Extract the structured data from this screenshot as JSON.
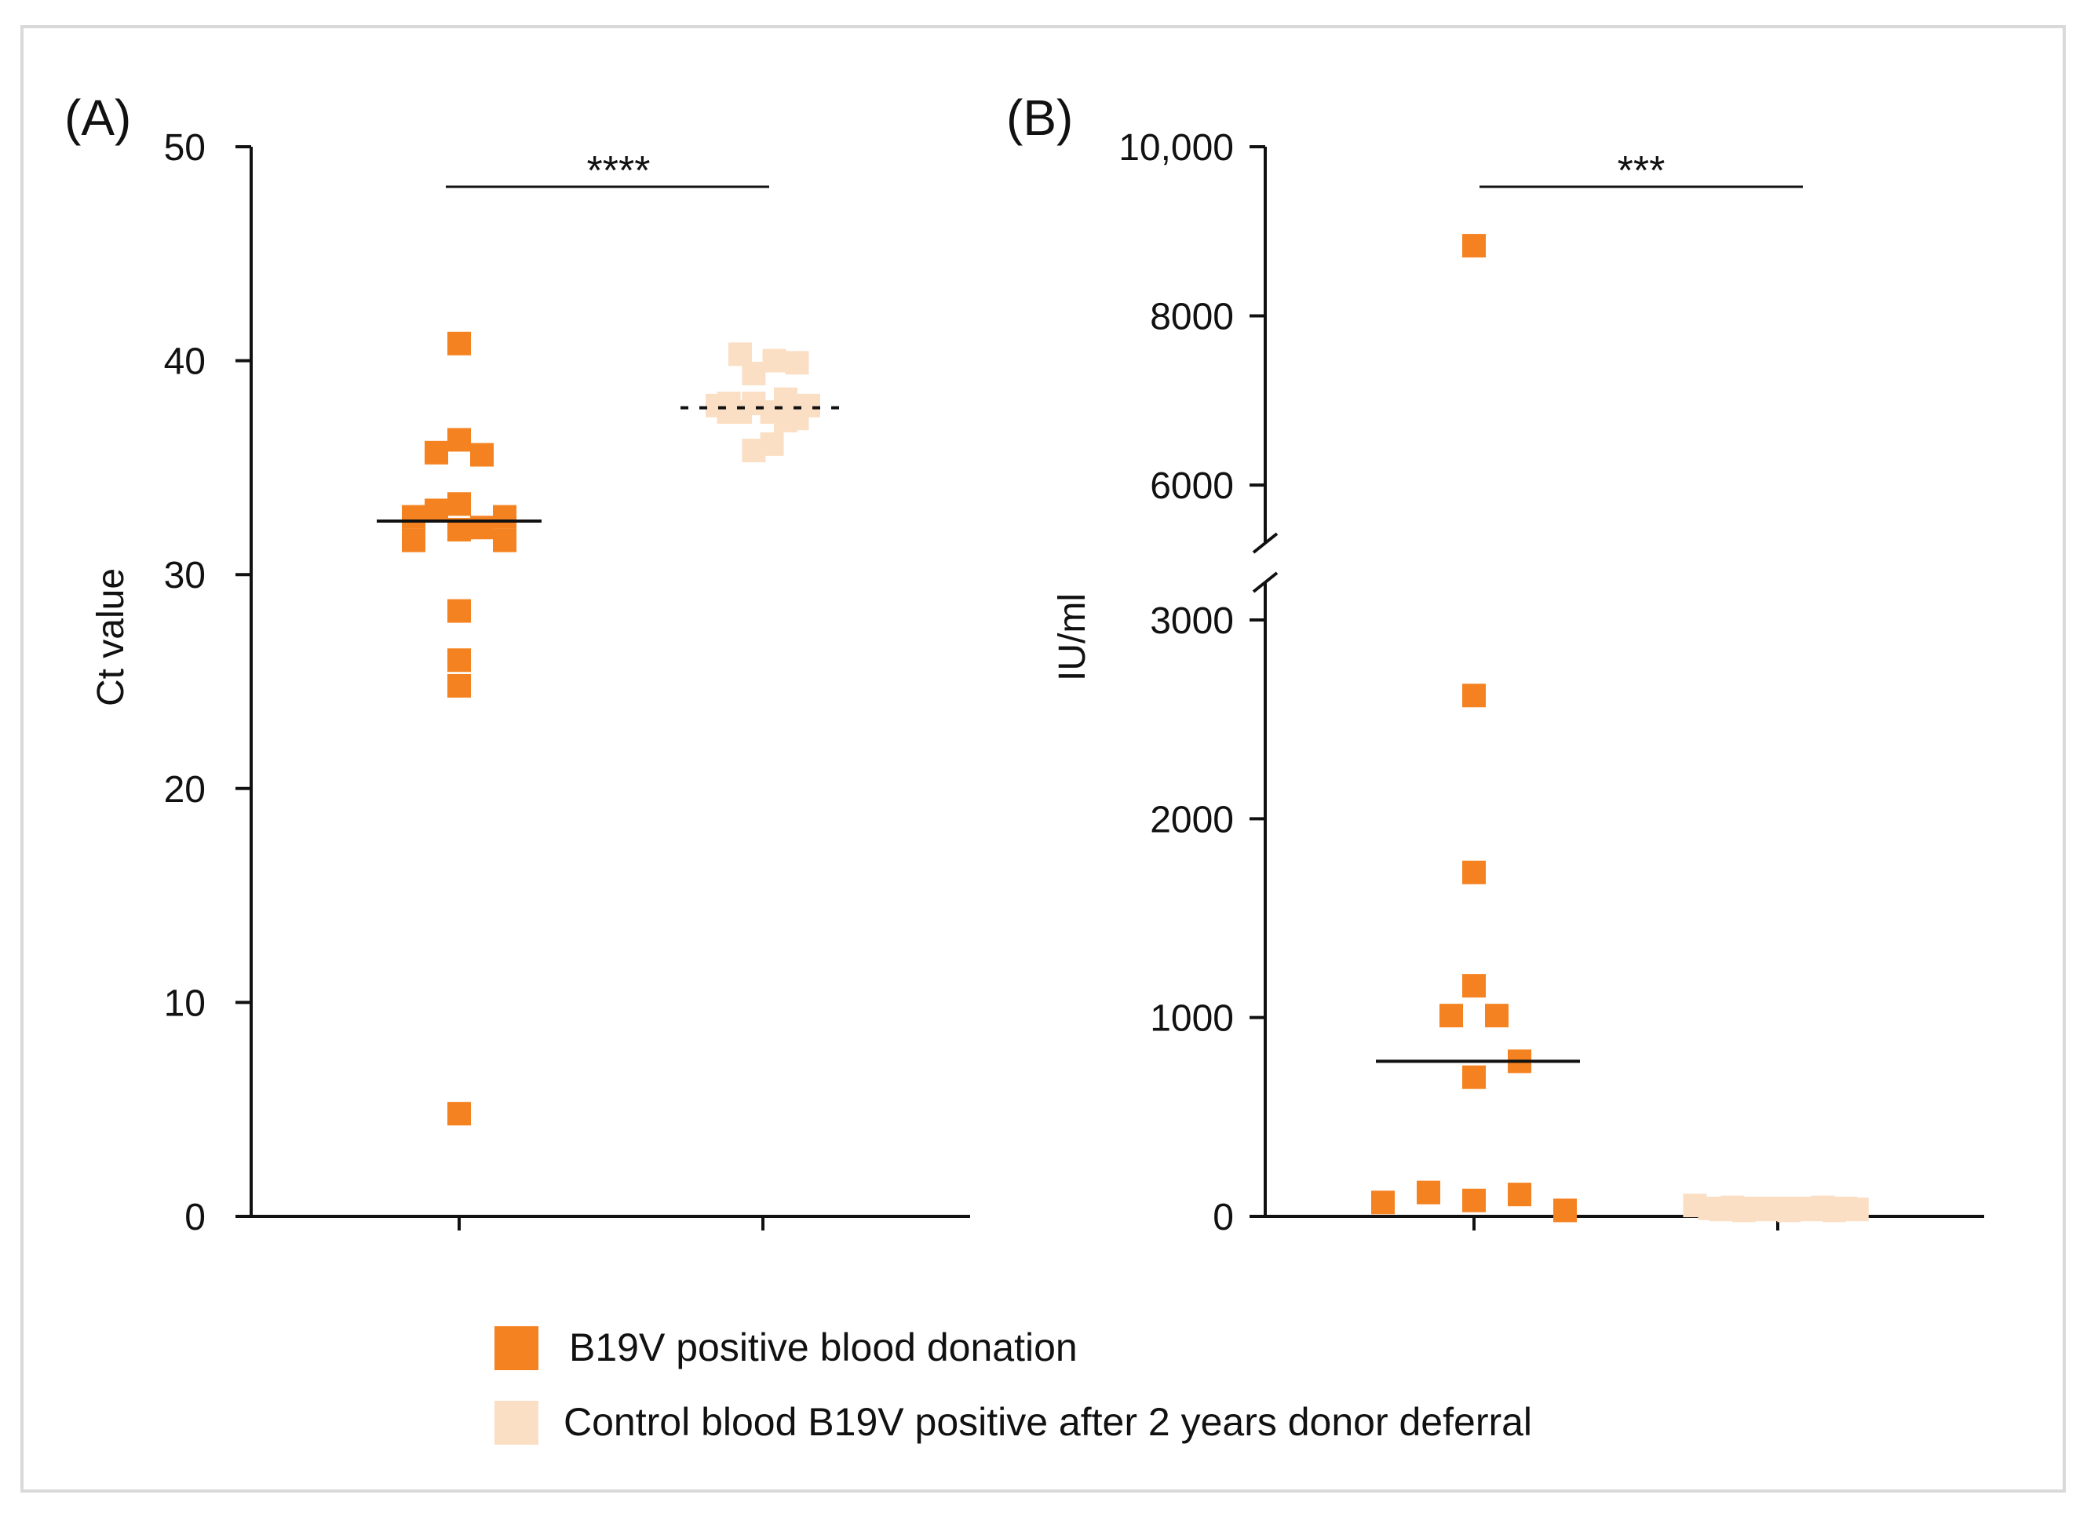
{
  "colors": {
    "group1": "#F58220",
    "group2": "#FBDFC4",
    "axis": "#111111",
    "frame": "#d9d9d9"
  },
  "legend": {
    "items": [
      {
        "label": "B19V positive blood donation"
      },
      {
        "label": "Control blood B19V positive after 2 years donor deferral"
      }
    ]
  },
  "chart_data": [
    {
      "type": "scatter",
      "panel_label": "(A)",
      "title": "",
      "xlabel": "",
      "ylabel": "Ct value",
      "ylim": [
        0,
        50
      ],
      "yticks": [
        0,
        10,
        20,
        30,
        40,
        50
      ],
      "ytick_labels": [
        "0",
        "10",
        "20",
        "30",
        "40",
        "50"
      ],
      "significance": "****",
      "grid": false,
      "series": [
        {
          "name": "B19V positive blood donation",
          "median": 32.5,
          "points": [
            {
              "x": 0,
              "y": 40.8
            },
            {
              "x": -0.5,
              "y": 35.7
            },
            {
              "x": 0,
              "y": 36.3
            },
            {
              "x": 0.5,
              "y": 35.6
            },
            {
              "x": -1,
              "y": 32.7
            },
            {
              "x": -1,
              "y": 31.6
            },
            {
              "x": -0.5,
              "y": 33.0
            },
            {
              "x": 0,
              "y": 33.3
            },
            {
              "x": 0,
              "y": 32.1
            },
            {
              "x": 0.5,
              "y": 32.2
            },
            {
              "x": 1,
              "y": 32.7
            },
            {
              "x": 1,
              "y": 31.6
            },
            {
              "x": 0,
              "y": 28.3
            },
            {
              "x": 0,
              "y": 26.0
            },
            {
              "x": 0,
              "y": 24.8
            },
            {
              "x": 0,
              "y": 4.8
            }
          ]
        },
        {
          "name": "Control blood B19V positive after 2 years donor deferral",
          "median": 37.8,
          "points": [
            {
              "x": -0.5,
              "y": 40.3
            },
            {
              "x": 0.25,
              "y": 40.0
            },
            {
              "x": 0.75,
              "y": 39.9
            },
            {
              "x": -0.2,
              "y": 39.4
            },
            {
              "x": -1,
              "y": 37.9
            },
            {
              "x": -0.75,
              "y": 37.6
            },
            {
              "x": -0.5,
              "y": 37.6
            },
            {
              "x": -0.2,
              "y": 38.0
            },
            {
              "x": 0.2,
              "y": 37.6
            },
            {
              "x": 0.5,
              "y": 38.2
            },
            {
              "x": 0.75,
              "y": 37.3
            },
            {
              "x": 1,
              "y": 37.9
            },
            {
              "x": -0.2,
              "y": 35.8
            },
            {
              "x": 0.2,
              "y": 36.1
            },
            {
              "x": 0.5,
              "y": 37.2
            },
            {
              "x": -0.75,
              "y": 38.0
            }
          ]
        }
      ]
    },
    {
      "type": "scatter",
      "panel_label": "(B)",
      "title": "",
      "xlabel": "",
      "ylabel": "IU/ml",
      "ylim": [
        0,
        10000
      ],
      "axis_break": [
        3000,
        5500
      ],
      "yticks": [
        0,
        1000,
        2000,
        3000,
        6000,
        8000,
        10000
      ],
      "ytick_labels": [
        "0",
        "1000",
        "2000",
        "3000",
        "6000",
        "8000",
        "10,000"
      ],
      "significance": "***",
      "grid": false,
      "series": [
        {
          "name": "B19V positive blood donation",
          "median": 780,
          "points": [
            {
              "x": 0,
              "y": 8830
            },
            {
              "x": 0,
              "y": 2620
            },
            {
              "x": 0,
              "y": 1730
            },
            {
              "x": 0,
              "y": 1160
            },
            {
              "x": -0.5,
              "y": 1010
            },
            {
              "x": 0.5,
              "y": 1010
            },
            {
              "x": 1,
              "y": 780
            },
            {
              "x": 0,
              "y": 700
            },
            {
              "x": -2,
              "y": 70
            },
            {
              "x": -1,
              "y": 120
            },
            {
              "x": 0,
              "y": 80
            },
            {
              "x": 1,
              "y": 110
            },
            {
              "x": 2,
              "y": 30
            }
          ]
        },
        {
          "name": "Control blood B19V positive after 2 years donor deferral",
          "median": 40,
          "points": [
            {
              "x": -2.2,
              "y": 55
            },
            {
              "x": -1.8,
              "y": 40
            },
            {
              "x": -1.5,
              "y": 35
            },
            {
              "x": -1.2,
              "y": 45
            },
            {
              "x": -0.9,
              "y": 30
            },
            {
              "x": -0.6,
              "y": 40
            },
            {
              "x": -0.3,
              "y": 35
            },
            {
              "x": 0,
              "y": 40
            },
            {
              "x": 0.3,
              "y": 30
            },
            {
              "x": 0.6,
              "y": 40
            },
            {
              "x": 0.9,
              "y": 35
            },
            {
              "x": 1.2,
              "y": 45
            },
            {
              "x": 1.5,
              "y": 30
            },
            {
              "x": 1.8,
              "y": 40
            },
            {
              "x": 2.1,
              "y": 35
            }
          ]
        }
      ]
    }
  ]
}
